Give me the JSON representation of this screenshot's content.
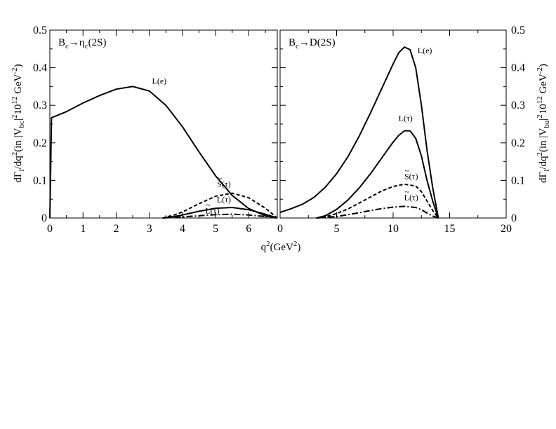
{
  "chart_data": [
    {
      "type": "line",
      "panel_title": "B_c→η_c(2S)",
      "title_base": "B",
      "title_sub1": "c",
      "title_arrow": "→η",
      "title_sub2": "c",
      "title_tail": "(2S)",
      "xlim": [
        0,
        6.86
      ],
      "ylim": [
        0,
        0.5
      ],
      "xticks": [
        0,
        1,
        2,
        3,
        4,
        5,
        6
      ],
      "yticks": [
        0,
        0.1,
        0.2,
        0.3,
        0.4,
        0.5
      ],
      "xtick_labels": [
        "0",
        "1",
        "2",
        "3",
        "4",
        "5",
        "6"
      ],
      "ytick_labels": [
        "0",
        "0.1",
        "0.2",
        "0.3",
        "0.4",
        "0.5"
      ],
      "ylabel": "dΓ_i/dq^2(in |V_bc|^2 10^12 GeV^-2)",
      "series": [
        {
          "name": "L(e)",
          "style": "solid",
          "x": [
            0.0,
            0.05,
            0.5,
            1.0,
            1.5,
            2.0,
            2.5,
            3.0,
            3.5,
            4.0,
            4.5,
            5.0,
            5.5,
            6.0,
            6.5,
            6.86
          ],
          "y": [
            0.0,
            0.267,
            0.283,
            0.306,
            0.326,
            0.343,
            0.35,
            0.338,
            0.3,
            0.243,
            0.176,
            0.112,
            0.06,
            0.025,
            0.006,
            0.0
          ]
        },
        {
          "name": "S(τ)",
          "style": "dashed",
          "x": [
            3.4,
            3.75,
            4.0,
            4.5,
            5.0,
            5.5,
            6.0,
            6.5,
            6.86
          ],
          "y": [
            0.0,
            0.008,
            0.016,
            0.038,
            0.058,
            0.066,
            0.054,
            0.026,
            0.0
          ]
        },
        {
          "name": "L(τ)",
          "style": "solid",
          "x": [
            3.4,
            3.75,
            4.0,
            4.5,
            5.0,
            5.5,
            6.0,
            6.5,
            6.86
          ],
          "y": [
            0.0,
            0.004,
            0.008,
            0.018,
            0.026,
            0.028,
            0.022,
            0.01,
            0.0
          ]
        },
        {
          "name": "L(τ)",
          "style": "dashdot",
          "x": [
            3.4,
            4.0,
            4.5,
            5.0,
            5.5,
            6.0,
            6.5,
            6.86
          ],
          "y": [
            0.0,
            0.003,
            0.006,
            0.009,
            0.01,
            0.008,
            0.004,
            0.0
          ]
        }
      ],
      "curve_labels": [
        {
          "text": "L(e)",
          "x": 3.3,
          "y": 0.357
        },
        {
          "text": "S(τ)",
          "x": 5.25,
          "y": 0.083
        },
        {
          "text": "L(τ)",
          "x": 5.25,
          "y": 0.042
        },
        {
          "text": "L(τ)",
          "x": 4.9,
          "y": 0.012
        }
      ]
    },
    {
      "type": "line",
      "panel_title": "B_c→D(2S)",
      "title_base": "B",
      "title_sub1": "c",
      "title_tail": "→D(2S)",
      "xlim": [
        0,
        20
      ],
      "ylim": [
        0,
        0.5
      ],
      "xticks": [
        0,
        5,
        10,
        15,
        20
      ],
      "yticks": [
        0,
        0.1,
        0.2,
        0.3,
        0.4,
        0.5
      ],
      "xtick_labels": [
        "0",
        "5",
        "10",
        "15",
        "20"
      ],
      "ytick_labels": [
        "0",
        "0.1",
        "0.2",
        "0.3",
        "0.4",
        "0.5"
      ],
      "ylabel": "dΓ_i/dq^2(in |V_bu|^2 10^12 GeV^-2)",
      "series": [
        {
          "name": "L(e)",
          "style": "solid",
          "x": [
            0.0,
            1.0,
            2.0,
            3.0,
            4.0,
            5.0,
            6.0,
            7.0,
            8.0,
            9.0,
            10.0,
            10.5,
            11.0,
            11.5,
            12.0,
            12.5,
            13.0,
            13.5,
            14.0
          ],
          "y": [
            0.015,
            0.025,
            0.037,
            0.055,
            0.082,
            0.118,
            0.163,
            0.218,
            0.28,
            0.345,
            0.41,
            0.44,
            0.455,
            0.448,
            0.4,
            0.3,
            0.18,
            0.08,
            0.0
          ]
        },
        {
          "name": "L(τ)",
          "style": "solid",
          "x": [
            3.2,
            4.0,
            5.0,
            6.0,
            7.0,
            8.0,
            9.0,
            10.0,
            10.5,
            11.0,
            11.5,
            12.0,
            12.5,
            13.0,
            13.5,
            14.0
          ],
          "y": [
            0.0,
            0.006,
            0.023,
            0.048,
            0.08,
            0.118,
            0.16,
            0.202,
            0.22,
            0.232,
            0.232,
            0.212,
            0.165,
            0.1,
            0.045,
            0.0
          ]
        },
        {
          "name": "S(τ)",
          "style": "dashed",
          "x": [
            3.2,
            4.0,
            5.0,
            6.0,
            7.0,
            8.0,
            9.0,
            10.0,
            11.0,
            12.0,
            12.5,
            13.0,
            13.5,
            14.0
          ],
          "y": [
            0.0,
            0.003,
            0.012,
            0.024,
            0.04,
            0.056,
            0.072,
            0.084,
            0.09,
            0.085,
            0.07,
            0.045,
            0.02,
            0.0
          ]
        },
        {
          "name": "L(τ)",
          "style": "dashdot",
          "x": [
            3.2,
            5.0,
            6.0,
            7.0,
            8.0,
            9.0,
            10.0,
            11.0,
            12.0,
            12.5,
            13.0,
            13.5,
            14.0
          ],
          "y": [
            0.0,
            0.004,
            0.009,
            0.014,
            0.02,
            0.025,
            0.029,
            0.031,
            0.028,
            0.022,
            0.013,
            0.005,
            0.0
          ]
        }
      ],
      "curve_labels": [
        {
          "text": "L(e)",
          "x": 12.8,
          "y": 0.438
        },
        {
          "text": "L(τ)",
          "x": 11.1,
          "y": 0.258
        },
        {
          "text": "S(τ)",
          "x": 11.6,
          "y": 0.104
        },
        {
          "text": "L(τ)",
          "x": 11.6,
          "y": 0.048
        }
      ]
    }
  ],
  "xlabel": "q^2(GeV^2)",
  "xlabel_base": "q",
  "xlabel_sup": "2",
  "xlabel_unit": "(GeV",
  "xlabel_unit_sup": "2",
  "xlabel_close": ")"
}
